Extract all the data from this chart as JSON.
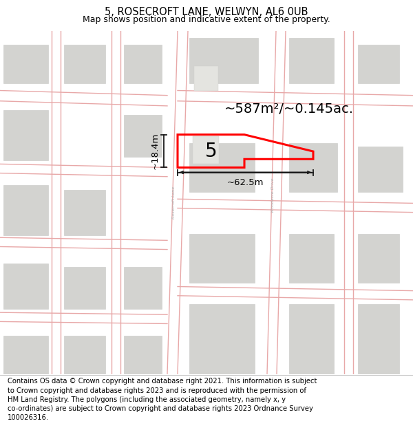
{
  "title": "5, ROSECROFT LANE, WELWYN, AL6 0UB",
  "subtitle": "Map shows position and indicative extent of the property.",
  "footer": "Contains OS data © Crown copyright and database right 2021. This information is subject\nto Crown copyright and database rights 2023 and is reproduced with the permission of\nHM Land Registry. The polygons (including the associated geometry, namely x, y\nco-ordinates) are subject to Crown copyright and database rights 2023 Ordnance Survey\n100026316.",
  "area_label": "~587m²/~0.145ac.",
  "width_label": "~62.5m",
  "height_label": "~18.4m",
  "number_label": "5",
  "map_bg": "#f9f9f7",
  "highlight_color": "#ff0000",
  "road_color": "#e8a8a8",
  "building_color": "#d3d3d0",
  "building_edge": "#c8c8c5",
  "line_color": "#1a1a1a",
  "title_fontsize": 10.5,
  "subtitle_fontsize": 9,
  "footer_fontsize": 7.2,
  "area_fontsize": 14,
  "number_fontsize": 20,
  "meas_fontsize": 9.5
}
